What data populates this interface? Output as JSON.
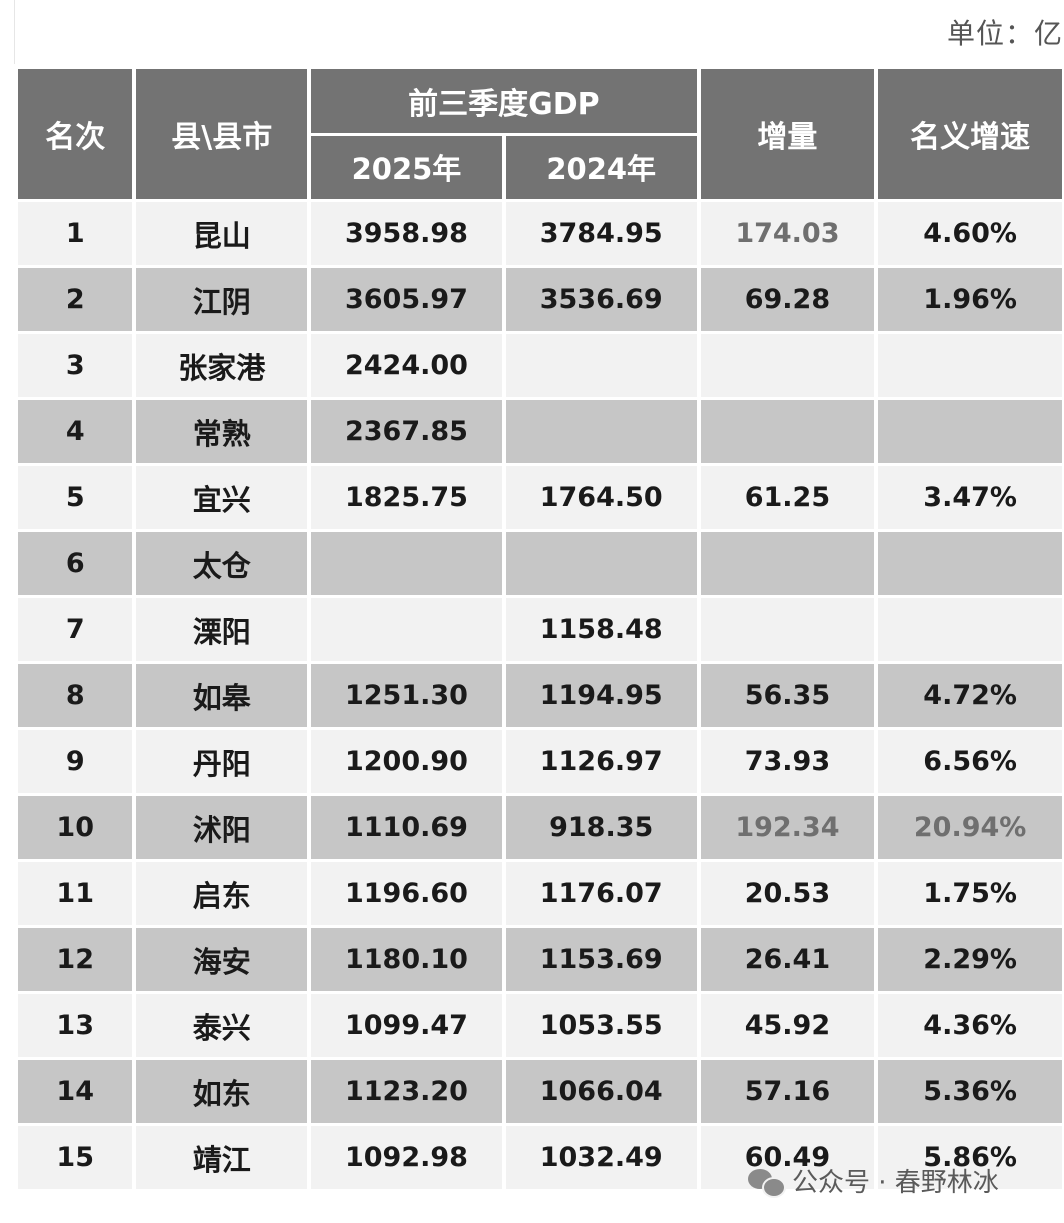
{
  "unit_label": "单位：亿",
  "header": {
    "rank": "名次",
    "county": "县\\县市",
    "gdp_group": "前三季度GDP",
    "year_2025": "2025年",
    "year_2024": "2024年",
    "increase": "增量",
    "growth": "名义增速"
  },
  "rows": [
    {
      "rank": "1",
      "name": "昆山",
      "gdp2025": "3958.98",
      "gdp2024": "3784.95",
      "increase": "174.03",
      "growth": "4.60%"
    },
    {
      "rank": "2",
      "name": "江阴",
      "gdp2025": "3605.97",
      "gdp2024": "3536.69",
      "increase": "69.28",
      "growth": "1.96%"
    },
    {
      "rank": "3",
      "name": "张家港",
      "gdp2025": "2424.00",
      "gdp2024": "",
      "increase": "",
      "growth": ""
    },
    {
      "rank": "4",
      "name": "常熟",
      "gdp2025": "2367.85",
      "gdp2024": "",
      "increase": "",
      "growth": ""
    },
    {
      "rank": "5",
      "name": "宜兴",
      "gdp2025": "1825.75",
      "gdp2024": "1764.50",
      "increase": "61.25",
      "growth": "3.47%"
    },
    {
      "rank": "6",
      "name": "太仓",
      "gdp2025": "",
      "gdp2024": "",
      "increase": "",
      "growth": ""
    },
    {
      "rank": "7",
      "name": "溧阳",
      "gdp2025": "",
      "gdp2024": "1158.48",
      "increase": "",
      "growth": ""
    },
    {
      "rank": "8",
      "name": "如皋",
      "gdp2025": "1251.30",
      "gdp2024": "1194.95",
      "increase": "56.35",
      "growth": "4.72%"
    },
    {
      "rank": "9",
      "name": "丹阳",
      "gdp2025": "1200.90",
      "gdp2024": "1126.97",
      "increase": "73.93",
      "growth": "6.56%"
    },
    {
      "rank": "10",
      "name": "沭阳",
      "gdp2025": "1110.69",
      "gdp2024": "918.35",
      "increase": "192.34",
      "growth": "20.94%"
    },
    {
      "rank": "11",
      "name": "启东",
      "gdp2025": "1196.60",
      "gdp2024": "1176.07",
      "increase": "20.53",
      "growth": "1.75%"
    },
    {
      "rank": "12",
      "name": "海安",
      "gdp2025": "1180.10",
      "gdp2024": "1153.69",
      "increase": "26.41",
      "growth": "2.29%"
    },
    {
      "rank": "13",
      "name": "泰兴",
      "gdp2025": "1099.47",
      "gdp2024": "1053.55",
      "increase": "45.92",
      "growth": "4.36%"
    },
    {
      "rank": "14",
      "name": "如东",
      "gdp2025": "1123.20",
      "gdp2024": "1066.04",
      "increase": "57.16",
      "growth": "5.36%"
    },
    {
      "rank": "15",
      "name": "靖江",
      "gdp2025": "1092.98",
      "gdp2024": "1032.49",
      "increase": "60.49",
      "growth": "5.86%"
    }
  ],
  "muted_cells": [
    {
      "row": 0,
      "col": "increase"
    },
    {
      "row": 9,
      "col": "increase"
    },
    {
      "row": 9,
      "col": "growth"
    }
  ],
  "watermark": {
    "icon": "wechat-icon",
    "text": "公众号 · 春野林冰"
  },
  "colors": {
    "header_bg": "#737373",
    "row_light": "#f2f2f2",
    "row_dark": "#c6c6c6"
  }
}
